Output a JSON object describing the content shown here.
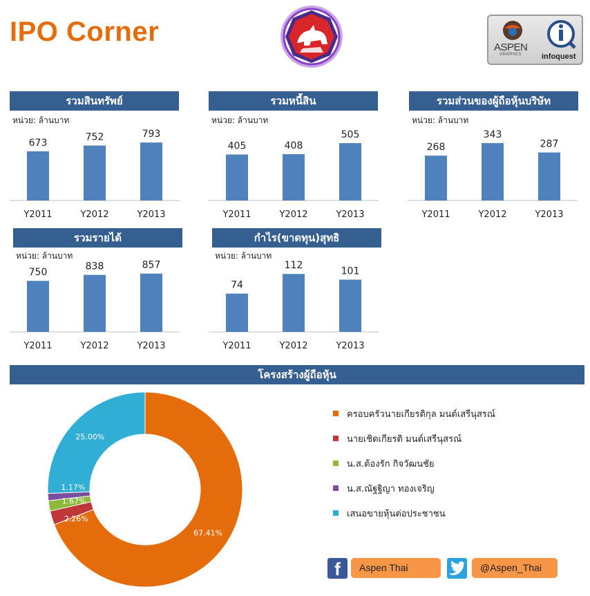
{
  "page_title": "IPO Corner",
  "unit_label": "หน่วย: ล้านบาท",
  "colors": {
    "accent": "#e46c0a",
    "header_bg": "#365f91",
    "bar": "#4f81bd",
    "social_pill": "#f79646"
  },
  "logos": {
    "center": "rhino-emblem-logo",
    "partner_1_text": "ASPEN",
    "partner_1_sub": "GRAPHICS",
    "partner_2_text": "infoquest"
  },
  "chart_data": [
    {
      "type": "bar",
      "title": "รวมสินทรัพย์",
      "categories": [
        "Y2011",
        "Y2012",
        "Y2013"
      ],
      "values": [
        673,
        752,
        793
      ],
      "unit": "หน่วย: ล้านบาท",
      "grid": false
    },
    {
      "type": "bar",
      "title": "รวมหนี้สิน",
      "categories": [
        "Y2011",
        "Y2012",
        "Y2013"
      ],
      "values": [
        405,
        408,
        505
      ],
      "unit": "หน่วย: ล้านบาท",
      "grid": false
    },
    {
      "type": "bar",
      "title": "รวมส่วนของผู้ถือหุ้นบริษัท",
      "categories": [
        "Y2011",
        "Y2012",
        "Y2013"
      ],
      "values": [
        268,
        343,
        287
      ],
      "unit": "หน่วย: ล้านบาท",
      "grid": false
    },
    {
      "type": "bar",
      "title": "รวมรายได้",
      "categories": [
        "Y2011",
        "Y2012",
        "Y2013"
      ],
      "values": [
        750,
        838,
        857
      ],
      "unit": "หน่วย: ล้านบาท",
      "grid": false
    },
    {
      "type": "bar",
      "title": "กำไร(ขาดทุน)สุทธิ",
      "categories": [
        "Y2011",
        "Y2012",
        "Y2013"
      ],
      "values": [
        74,
        112,
        101
      ],
      "unit": "หน่วย: ล้านบาท",
      "grid": false
    },
    {
      "type": "pie",
      "title": "โครงสร้างผู้ถือหุ้น",
      "donut": true,
      "legend_position": "right",
      "slices": [
        {
          "label": "ครอบครัวนายเกียรติกุล  มนต์เสรีนุสรณ์",
          "value": 67.41,
          "value_label": "67.41%",
          "color": "#e46c0a"
        },
        {
          "label": "นายเชิดเกียรติ  มนต์เสรีนุสรณ์",
          "value": 2.26,
          "value_label": "2.26%",
          "color": "#c0373a"
        },
        {
          "label": "น.ส.ต้องรัก  กิจวัฒนชัย",
          "value": 1.67,
          "value_label": "1.67%",
          "color": "#8db93a"
        },
        {
          "label": "น.ส.ณัฐฐิญา  ทองเจริญ",
          "value": 1.17,
          "value_label": "1.17%",
          "color": "#7a4f9e"
        },
        {
          "label": "เสนอขายหุ้นต่อประชาชน",
          "value": 25.0,
          "value_label": "25.00%",
          "color": "#31aed3"
        }
      ]
    }
  ],
  "social": {
    "facebook_icon": "facebook-icon",
    "facebook_label": "Aspen Thai",
    "twitter_icon": "twitter-icon",
    "twitter_label": "@Aspen_Thai"
  }
}
